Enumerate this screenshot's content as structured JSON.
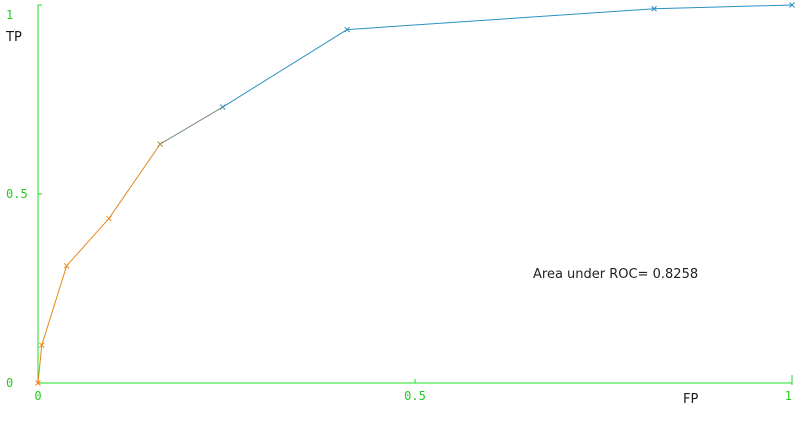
{
  "chart_data": {
    "type": "line",
    "title": "",
    "xlabel": "FP",
    "ylabel": "TP",
    "xlim": [
      0,
      1
    ],
    "ylim": [
      0,
      1
    ],
    "x_ticks": [
      {
        "value": 0,
        "label": "0"
      },
      {
        "value": 0.5,
        "label": "0.5"
      },
      {
        "value": 1,
        "label": "1"
      }
    ],
    "y_ticks": [
      {
        "value": 0,
        "label": "0"
      },
      {
        "value": 0.5,
        "label": "0.5"
      },
      {
        "value": 1,
        "label": "1"
      }
    ],
    "grid": false,
    "legend": "none",
    "annotation": "Area under ROC= 0.8258",
    "colors": {
      "axis": "#22dd22",
      "tick_label": "#22cc22",
      "curve_low": "#e8891c",
      "curve_high": "#2a8fc0"
    },
    "points": [
      {
        "x": 0.0,
        "y": 0.0
      },
      {
        "x": 0.005,
        "y": 0.1
      },
      {
        "x": 0.038,
        "y": 0.31
      },
      {
        "x": 0.094,
        "y": 0.435
      },
      {
        "x": 0.162,
        "y": 0.632
      },
      {
        "x": 0.245,
        "y": 0.73
      },
      {
        "x": 0.41,
        "y": 0.935
      },
      {
        "x": 0.817,
        "y": 0.99
      },
      {
        "x": 1.0,
        "y": 1.0
      }
    ]
  }
}
